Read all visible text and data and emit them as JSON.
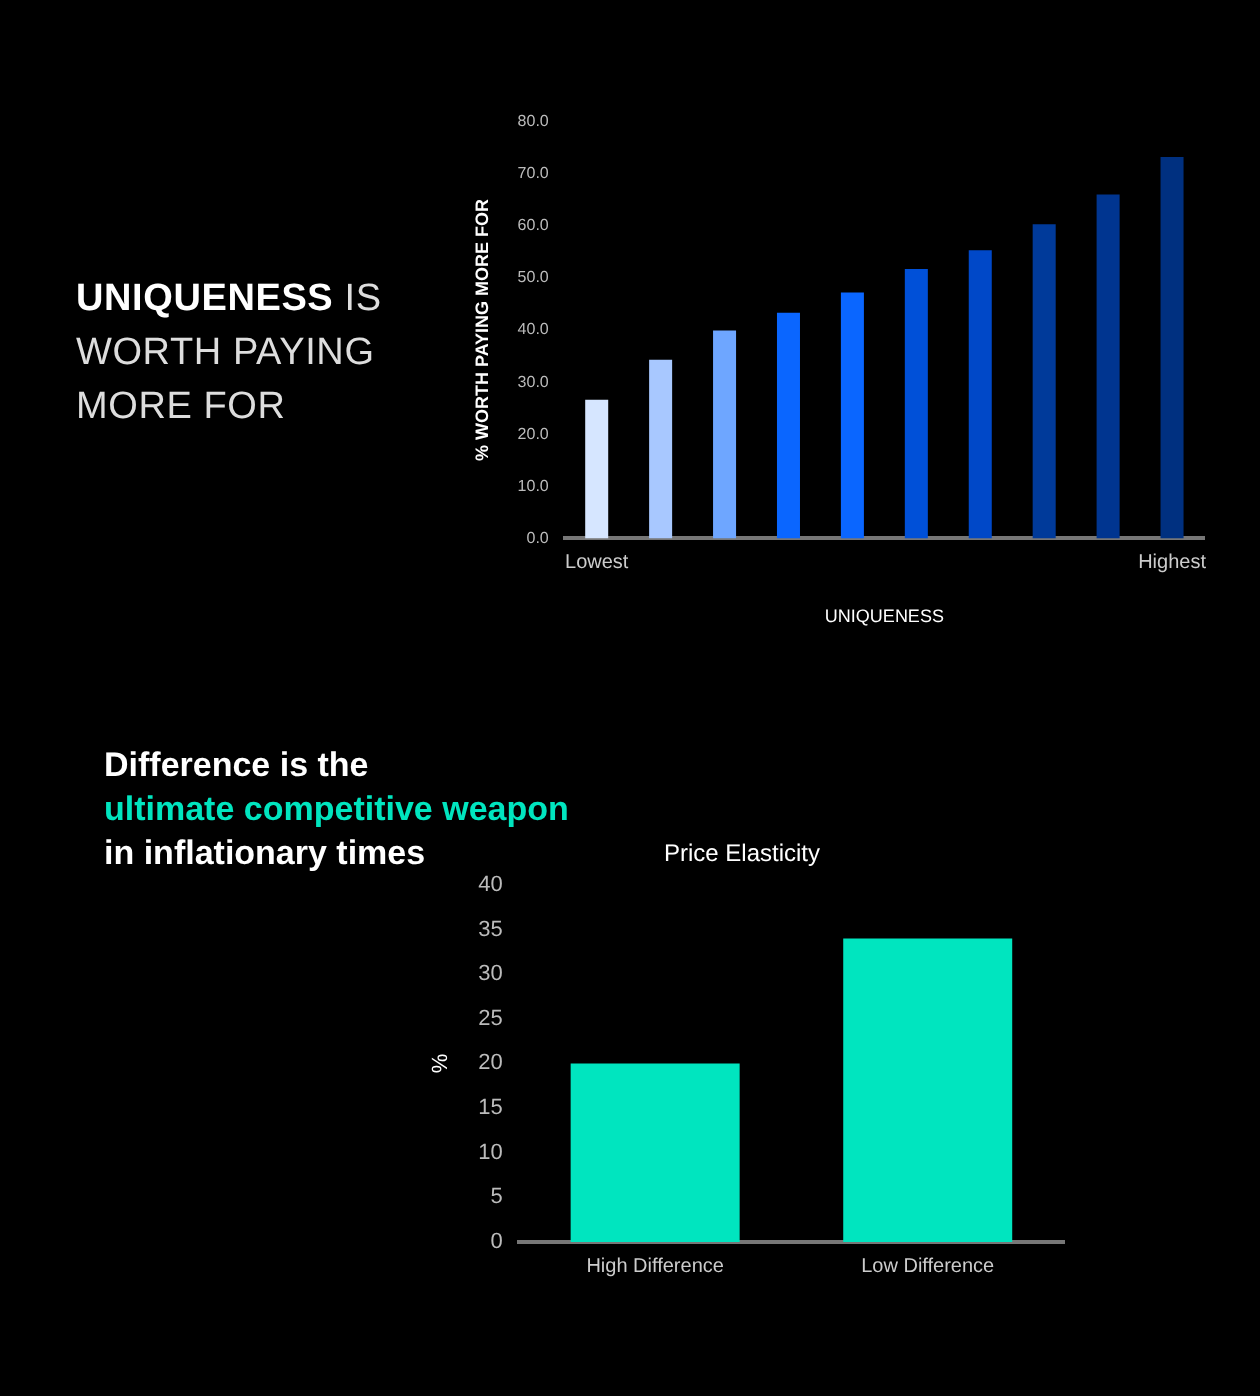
{
  "chart_data": [
    {
      "type": "bar",
      "title": "UNIQUENESS IS WORTH PAYING MORE FOR",
      "xlabel": "UNIQUENESS",
      "ylabel": "% WORTH PAYING MORE FOR",
      "categories": [
        "Lowest",
        null,
        null,
        null,
        null,
        null,
        null,
        null,
        null,
        "Highest"
      ],
      "values": [
        26.6,
        34.3,
        39.9,
        43.3,
        47.2,
        51.7,
        55.3,
        60.3,
        66.0,
        73.2
      ],
      "colors": [
        "#d6e6ff",
        "#a8c8ff",
        "#6ea6ff",
        "#0a66ff",
        "#0a66ff",
        "#0050d8",
        "#0048c8",
        "#003a9a",
        "#003590",
        "#003080"
      ],
      "ylim": [
        0,
        80
      ],
      "yticks": [
        {
          "value": 0,
          "label": "0.0"
        },
        {
          "value": 10,
          "label": "10.0"
        },
        {
          "value": 20,
          "label": "20.0"
        },
        {
          "value": 30,
          "label": "30.0"
        },
        {
          "value": 40,
          "label": "40.0"
        },
        {
          "value": 50,
          "label": "50.0"
        },
        {
          "value": 60,
          "label": "60.0"
        },
        {
          "value": 70,
          "label": "70.0"
        },
        {
          "value": 80,
          "label": "80.0"
        }
      ],
      "grid": false,
      "legend": false
    },
    {
      "type": "bar",
      "title": "Price Elasticity",
      "ylabel": "%",
      "annotations": [
        "Difference is the",
        "ultimate competitive weapon",
        "in inflationary times"
      ],
      "categories": [
        "High Difference",
        "Low Difference"
      ],
      "values": [
        20,
        34
      ],
      "color": "#00e5bf",
      "ylim": [
        0,
        40
      ],
      "yticks": [
        0,
        5,
        10,
        15,
        20,
        25,
        30,
        35,
        40
      ],
      "grid": false,
      "legend": false
    }
  ]
}
